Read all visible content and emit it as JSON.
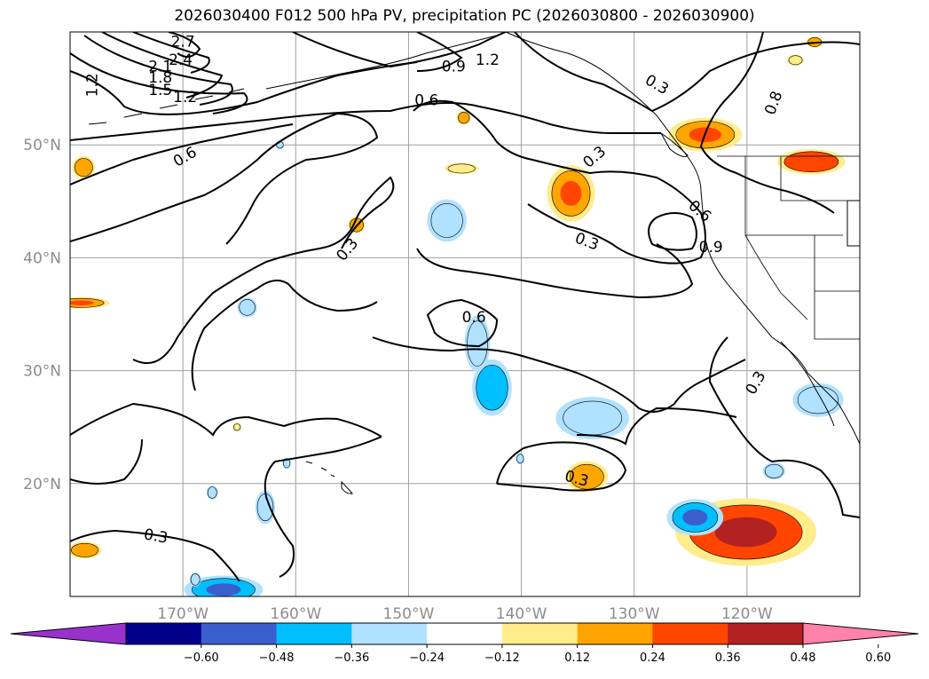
{
  "title": "2026030400 F012 500 hPa PV, precipitation PC (2026030800 - 2026030900)",
  "chart_data": {
    "type": "heatmap",
    "title": "2026030400 F012 500 hPa PV, precipitation PC (2026030800 - 2026030900)",
    "map_extent": {
      "lon_min": -180,
      "lon_max": -110,
      "lat_min": 10,
      "lat_max": 60
    },
    "x_axis": {
      "tick_values": [
        -170,
        -160,
        -150,
        -140,
        -130,
        -120
      ],
      "tick_labels": [
        "170°W",
        "160°W",
        "150°W",
        "140°W",
        "130°W",
        "120°W"
      ]
    },
    "y_axis": {
      "tick_values": [
        20,
        30,
        40,
        50
      ],
      "tick_labels": [
        "20°N",
        "30°N",
        "40°N",
        "50°N"
      ]
    },
    "grid": true,
    "colorbar": {
      "orientation": "horizontal",
      "extend": "both",
      "levels": [
        -0.6,
        -0.48,
        -0.36,
        -0.24,
        -0.12,
        0.12,
        0.24,
        0.36,
        0.48,
        0.6
      ],
      "tick_labels": [
        "−0.60",
        "−0.48",
        "−0.36",
        "−0.24",
        "−0.12",
        "0.12",
        "0.24",
        "0.36",
        "0.48",
        "0.60"
      ],
      "colors": [
        "#9932cc",
        "#00008b",
        "#3a5fcd",
        "#00bfff",
        "#b0e2ff",
        "#ffffff",
        "#ffec8b",
        "#ffa500",
        "#ff4500",
        "#b22222",
        "#ff82ab"
      ]
    },
    "pv_contour_labels": [
      {
        "text": "2.7",
        "lon": -170,
        "lat": 59.1
      },
      {
        "text": "2.4",
        "lon": -170.2,
        "lat": 57.5
      },
      {
        "text": "2.1",
        "lon": -172,
        "lat": 56.9
      },
      {
        "text": "1.8",
        "lon": -172,
        "lat": 55.9
      },
      {
        "text": "1.5",
        "lon": -172,
        "lat": 54.8
      },
      {
        "text": "1.2",
        "lon": -169.8,
        "lat": 54.2
      },
      {
        "text": "1.2",
        "lon": -178,
        "lat": 55.3,
        "rotate": -90
      },
      {
        "text": "0.9",
        "lon": -146,
        "lat": 56.9
      },
      {
        "text": "1.2",
        "lon": -143,
        "lat": 57.5
      },
      {
        "text": "0.6",
        "lon": -148.4,
        "lat": 53.9
      },
      {
        "text": "0.6",
        "lon": -169.8,
        "lat": 48.9,
        "rotate": -30
      },
      {
        "text": "0.3",
        "lon": -155.4,
        "lat": 40.7,
        "rotate": -50
      },
      {
        "text": "0.3",
        "lon": -133.5,
        "lat": 48.9,
        "rotate": -40
      },
      {
        "text": "0.3",
        "lon": -128,
        "lat": 55.3,
        "rotate": 30
      },
      {
        "text": "0.8",
        "lon": -117.6,
        "lat": 53.7,
        "rotate": -70
      },
      {
        "text": "0.6",
        "lon": -124.2,
        "lat": 44.1,
        "rotate": 40
      },
      {
        "text": "0.3",
        "lon": -134.2,
        "lat": 41.4,
        "rotate": 20
      },
      {
        "text": "0.9",
        "lon": -123.2,
        "lat": 40.9
      },
      {
        "text": "0.6",
        "lon": -144.2,
        "lat": 34.7
      },
      {
        "text": "0.3",
        "lon": -119.2,
        "lat": 28.9,
        "rotate": -60
      },
      {
        "text": "0.3",
        "lon": -135.1,
        "lat": 20.4,
        "rotate": 15
      },
      {
        "text": "0.3",
        "lon": -172.4,
        "lat": 15.3,
        "rotate": 10
      }
    ],
    "precip_blobs": [
      {
        "lon": -135.6,
        "lat": 45.7,
        "rx": 1.7,
        "ry": 2.0,
        "value": 0.36
      },
      {
        "lon": -123.7,
        "lat": 50.9,
        "rx": 2.6,
        "ry": 1.2,
        "value": 0.36
      },
      {
        "lon": -114.3,
        "lat": 48.5,
        "rx": 2.4,
        "ry": 0.9,
        "value": 0.42
      },
      {
        "lon": -178.8,
        "lat": 48.0,
        "rx": 0.8,
        "ry": 0.8,
        "value": 0.3
      },
      {
        "lon": -179.0,
        "lat": 36.0,
        "rx": 2.0,
        "ry": 0.4,
        "value": 0.4
      },
      {
        "lon": -178.7,
        "lat": 14.1,
        "rx": 1.2,
        "ry": 0.6,
        "value": 0.3
      },
      {
        "lon": -134.2,
        "lat": 20.6,
        "rx": 1.5,
        "ry": 1.1,
        "value": 0.3
      },
      {
        "lon": -120.1,
        "lat": 15.7,
        "rx": 5.0,
        "ry": 2.4,
        "value": 0.5
      },
      {
        "lon": -114.0,
        "lat": 59.1,
        "rx": 0.6,
        "ry": 0.4,
        "value": 0.3
      },
      {
        "lon": -115.7,
        "lat": 57.5,
        "rx": 0.6,
        "ry": 0.4,
        "value": 0.26
      },
      {
        "lon": -145.3,
        "lat": 47.9,
        "rx": 1.2,
        "ry": 0.4,
        "value": 0.26
      },
      {
        "lon": -145.1,
        "lat": 52.4,
        "rx": 0.5,
        "ry": 0.5,
        "value": 0.3
      },
      {
        "lon": -154.6,
        "lat": 42.9,
        "rx": 0.6,
        "ry": 0.6,
        "value": 0.3
      },
      {
        "lon": -146.6,
        "lat": 43.3,
        "rx": 1.4,
        "ry": 1.5,
        "value": -0.3
      },
      {
        "lon": -142.6,
        "lat": 28.5,
        "rx": 1.4,
        "ry": 2.0,
        "value": -0.36
      },
      {
        "lon": -143.9,
        "lat": 32.4,
        "rx": 0.9,
        "ry": 2.0,
        "value": -0.24
      },
      {
        "lon": -133.7,
        "lat": 25.8,
        "rx": 2.6,
        "ry": 1.5,
        "value": -0.3
      },
      {
        "lon": -113.7,
        "lat": 27.4,
        "rx": 1.8,
        "ry": 1.2,
        "value": -0.3
      },
      {
        "lon": -117.6,
        "lat": 21.1,
        "rx": 0.8,
        "ry": 0.6,
        "value": -0.3
      },
      {
        "lon": -124.6,
        "lat": 17.0,
        "rx": 2.0,
        "ry": 1.3,
        "value": -0.4
      },
      {
        "lon": -166.4,
        "lat": 10.6,
        "rx": 2.8,
        "ry": 1.0,
        "value": -0.4
      },
      {
        "lon": -162.7,
        "lat": 17.9,
        "rx": 0.7,
        "ry": 1.2,
        "value": -0.3
      },
      {
        "lon": -164.3,
        "lat": 35.6,
        "rx": 0.7,
        "ry": 0.7,
        "value": -0.3
      },
      {
        "lon": -167.4,
        "lat": 19.2,
        "rx": 0.4,
        "ry": 0.5,
        "value": -0.2
      },
      {
        "lon": -168.9,
        "lat": 11.5,
        "rx": 0.4,
        "ry": 0.5,
        "value": -0.2
      },
      {
        "lon": -160.8,
        "lat": 21.8,
        "rx": 0.3,
        "ry": 0.4,
        "value": -0.2
      },
      {
        "lon": -140.1,
        "lat": 22.2,
        "rx": 0.3,
        "ry": 0.4,
        "value": -0.2
      },
      {
        "lon": -161.4,
        "lat": 50.0,
        "rx": 0.3,
        "ry": 0.3,
        "value": -0.2
      },
      {
        "lon": -165.2,
        "lat": 25.0,
        "rx": 0.3,
        "ry": 0.3,
        "value": 0.2
      }
    ]
  }
}
